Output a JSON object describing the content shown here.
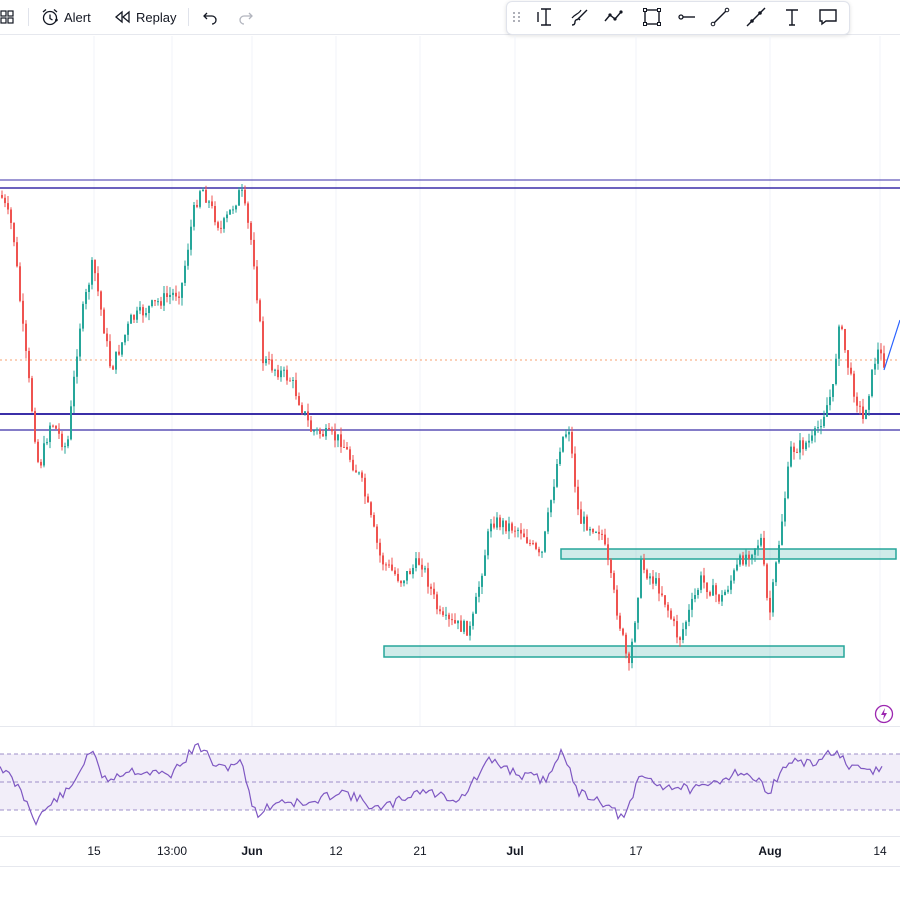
{
  "toolbar": {
    "alert_label": "Alert",
    "replay_label": "Replay",
    "icons": [
      "grid-icon",
      "alert-clock-icon",
      "replay-icon",
      "undo-icon",
      "redo-icon"
    ]
  },
  "drawing_toolbar": {
    "tools": [
      "drag-handle-icon",
      "cursor-cross-icon",
      "brush-icon",
      "path-icon",
      "rectangle-icon",
      "horizontal-ray-icon",
      "trend-line-icon",
      "extended-line-icon",
      "text-icon",
      "comment-icon"
    ]
  },
  "colors": {
    "bull": "#26a69a",
    "bear": "#ef5350",
    "level_line": "#3b2fa8",
    "zone": "#26a69a",
    "rsi": "#7e57c2",
    "dotted_price": "#f7a072"
  },
  "x_axis": {
    "labels": [
      {
        "text": "15",
        "bold": false
      },
      {
        "text": "13:00",
        "bold": false
      },
      {
        "text": "Jun",
        "bold": true
      },
      {
        "text": "12",
        "bold": false
      },
      {
        "text": "21",
        "bold": false
      },
      {
        "text": "Jul",
        "bold": true
      },
      {
        "text": "17",
        "bold": false
      },
      {
        "text": "Aug",
        "bold": true
      },
      {
        "text": "14",
        "bold": false
      }
    ]
  }
}
